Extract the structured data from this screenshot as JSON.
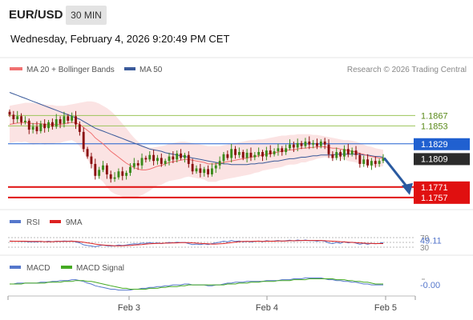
{
  "header": {
    "symbol": "EUR/USD",
    "timeframe": "30 MIN",
    "datetime": "Wednesday, February 4, 2026 9:20:49 PM CET"
  },
  "legend": {
    "ma20_bb": "MA 20 + Bollinger Bands",
    "ma50": "MA 50",
    "credit": "Research © 2026 Trading Central"
  },
  "colors": {
    "bullish": "#3a8a1a",
    "bearish": "#8b0f0f",
    "ma20": "#f07070",
    "ma50": "#3a5a9a",
    "resistance": "#9cc45a",
    "pivot": "#2060d0",
    "support": "#e01010",
    "current": "#333333",
    "arrow": "#2a5aa0",
    "rsi": "#5577cc",
    "rsi_ma": "#dd2222",
    "macd": "#5577cc",
    "macd_signal": "#44aa22"
  },
  "chart_data": {
    "type": "candlestick",
    "x_ticks": [
      "Feb 3",
      "Feb 4",
      "Feb 5"
    ],
    "ylim": [
      1.1745,
      1.192
    ],
    "current_price": 1.1809,
    "levels": [
      {
        "label": "1.1867",
        "value": 1.1867,
        "kind": "resistance"
      },
      {
        "label": "1.1853",
        "value": 1.1853,
        "kind": "resistance"
      },
      {
        "label": "1.1829",
        "value": 1.1829,
        "kind": "pivot"
      },
      {
        "label": "1.1809",
        "value": 1.1809,
        "kind": "current"
      },
      {
        "label": "1.1771",
        "value": 1.1771,
        "kind": "support"
      },
      {
        "label": "1.1757",
        "value": 1.1757,
        "kind": "support"
      }
    ],
    "closes": [
      1.1868,
      1.1862,
      1.1866,
      1.1858,
      1.186,
      1.1848,
      1.1852,
      1.1846,
      1.1856,
      1.185,
      1.1858,
      1.1852,
      1.1862,
      1.1856,
      1.1866,
      1.186,
      1.1866,
      1.1855,
      1.1845,
      1.1822,
      1.1812,
      1.1802,
      1.1786,
      1.1794,
      1.18,
      1.1788,
      1.1782,
      1.1784,
      1.1792,
      1.1786,
      1.179,
      1.1798,
      1.1803,
      1.18,
      1.181,
      1.1808,
      1.1814,
      1.1806,
      1.181,
      1.1802,
      1.1806,
      1.1812,
      1.1808,
      1.1816,
      1.181,
      1.1814,
      1.1802,
      1.1792,
      1.1796,
      1.179,
      1.1795,
      1.1788,
      1.1796,
      1.18,
      1.1806,
      1.1815,
      1.181,
      1.1822,
      1.1814,
      1.1818,
      1.181,
      1.1817,
      1.1811,
      1.1814,
      1.1818,
      1.1812,
      1.182,
      1.1815,
      1.1819,
      1.1823,
      1.1818,
      1.1823,
      1.1828,
      1.1824,
      1.183,
      1.1826,
      1.1832,
      1.1828,
      1.183,
      1.1826,
      1.1832,
      1.1828,
      1.1815,
      1.181,
      1.1818,
      1.1812,
      1.1822,
      1.1815,
      1.182,
      1.1814,
      1.1802,
      1.1808,
      1.18,
      1.1806,
      1.1802,
      1.1806,
      1.181
    ],
    "ma20": [
      1.1855,
      1.1856,
      1.1857,
      1.1857,
      1.1858,
      1.1857,
      1.1856,
      1.1856,
      1.1856,
      1.1855,
      1.1855,
      1.1855,
      1.1855,
      1.1855,
      1.1856,
      1.1857,
      1.1858,
      1.1857,
      1.1855,
      1.1851,
      1.1847,
      1.1843,
      1.1837,
      1.1833,
      1.1829,
      1.1824,
      1.1819,
      1.1815,
      1.1811,
      1.1807,
      1.1803,
      1.18,
      1.1797,
      1.1795,
      1.1794,
      1.1794,
      1.1795,
      1.1797,
      1.1799,
      1.18,
      1.1802,
      1.1804,
      1.1805,
      1.1806,
      1.1807,
      1.1808,
      1.1808,
      1.1807,
      1.1806,
      1.1805,
      1.1804,
      1.1802,
      1.1802,
      1.1802,
      1.1803,
      1.1804,
      1.1805,
      1.1806,
      1.1807,
      1.1808,
      1.1809,
      1.181,
      1.1811,
      1.1812,
      1.1813,
      1.1814,
      1.1815,
      1.1816,
      1.1817,
      1.1818,
      1.1819,
      1.182,
      1.1821,
      1.1821,
      1.1822,
      1.1823,
      1.1823,
      1.1824,
      1.1824,
      1.1825,
      1.1825,
      1.1825,
      1.1824,
      1.1823,
      1.1823,
      1.1822,
      1.1821,
      1.182,
      1.1819,
      1.1818,
      1.1816,
      1.1815,
      1.1813,
      1.1812,
      1.1811,
      1.181,
      1.181
    ],
    "bb_upper": [
      1.188,
      1.1881,
      1.1882,
      1.1883,
      1.1884,
      1.1884,
      1.1884,
      1.1883,
      1.1882,
      1.1882,
      1.1881,
      1.1881,
      1.188,
      1.188,
      1.188,
      1.1881,
      1.1882,
      1.1883,
      1.1884,
      1.1885,
      1.1886,
      1.1886,
      1.1885,
      1.1883,
      1.188,
      1.1877,
      1.1873,
      1.1868,
      1.1862,
      1.1856,
      1.185,
      1.1843,
      1.1837,
      1.1832,
      1.1828,
      1.1825,
      1.1824,
      1.1824,
      1.1825,
      1.1826,
      1.1827,
      1.1829,
      1.183,
      1.1831,
      1.1832,
      1.1832,
      1.1831,
      1.183,
      1.1829,
      1.1828,
      1.1827,
      1.1826,
      1.1826,
      1.1826,
      1.1826,
      1.1827,
      1.1828,
      1.1829,
      1.183,
      1.1831,
      1.1832,
      1.1833,
      1.1834,
      1.1834,
      1.1835,
      1.1835,
      1.1836,
      1.1837,
      1.1838,
      1.1839,
      1.184,
      1.184,
      1.1841,
      1.1841,
      1.1842,
      1.1842,
      1.1842,
      1.1842,
      1.1841,
      1.1841,
      1.184,
      1.1839,
      1.1838,
      1.1837,
      1.1836,
      1.1835,
      1.1834,
      1.1834,
      1.1833,
      1.1832,
      1.183,
      1.1828,
      1.1826,
      1.1825,
      1.1823,
      1.1822,
      1.1821
    ],
    "bb_lower": [
      1.183,
      1.1831,
      1.1832,
      1.1831,
      1.1832,
      1.183,
      1.1828,
      1.1829,
      1.183,
      1.1828,
      1.1829,
      1.1829,
      1.183,
      1.183,
      1.1832,
      1.1833,
      1.1834,
      1.1831,
      1.1826,
      1.1817,
      1.1808,
      1.18,
      1.1789,
      1.1783,
      1.1778,
      1.1771,
      1.1765,
      1.1762,
      1.176,
      1.1758,
      1.1756,
      1.1757,
      1.1757,
      1.1758,
      1.176,
      1.1763,
      1.1766,
      1.177,
      1.1773,
      1.1774,
      1.1777,
      1.1779,
      1.178,
      1.1781,
      1.1782,
      1.1784,
      1.1785,
      1.1784,
      1.1783,
      1.1782,
      1.1781,
      1.1778,
      1.1778,
      1.1778,
      1.178,
      1.1781,
      1.1782,
      1.1783,
      1.1784,
      1.1785,
      1.1786,
      1.1787,
      1.1788,
      1.179,
      1.1791,
      1.1793,
      1.1794,
      1.1795,
      1.1796,
      1.1797,
      1.1798,
      1.18,
      1.1801,
      1.1801,
      1.1802,
      1.1804,
      1.1804,
      1.1806,
      1.1807,
      1.1809,
      1.181,
      1.1811,
      1.181,
      1.1809,
      1.181,
      1.1809,
      1.1808,
      1.1806,
      1.1805,
      1.1804,
      1.1802,
      1.1802,
      1.18,
      1.1799,
      1.1799,
      1.1798,
      1.1799
    ],
    "ma50": [
      1.1898,
      1.1896,
      1.1894,
      1.1892,
      1.189,
      1.1888,
      1.1886,
      1.1884,
      1.1882,
      1.188,
      1.1878,
      1.1876,
      1.1874,
      1.1872,
      1.187,
      1.1868,
      1.1866,
      1.1864,
      1.1862,
      1.1859,
      1.1856,
      1.1853,
      1.185,
      1.1848,
      1.1846,
      1.1844,
      1.1842,
      1.184,
      1.1838,
      1.1836,
      1.1834,
      1.1832,
      1.183,
      1.1828,
      1.1826,
      1.1824,
      1.1822,
      1.1821,
      1.182,
      1.1819,
      1.1817,
      1.1816,
      1.1815,
      1.1814,
      1.1813,
      1.1812,
      1.1811,
      1.181,
      1.1809,
      1.1808,
      1.1807,
      1.1806,
      1.1805,
      1.1804,
      1.1803,
      1.1802,
      1.1802,
      1.1801,
      1.1801,
      1.1801,
      1.1801,
      1.1801,
      1.1802,
      1.1802,
      1.1803,
      1.1803,
      1.1804,
      1.1805,
      1.1806,
      1.1806,
      1.1807,
      1.1808,
      1.1809,
      1.1809,
      1.181,
      1.1811,
      1.1811,
      1.1812,
      1.1813,
      1.1813,
      1.1814,
      1.1814,
      1.1814,
      1.1814,
      1.1815,
      1.1815,
      1.1815,
      1.1815,
      1.1815,
      1.1815,
      1.1815,
      1.1814,
      1.1814,
      1.1813,
      1.1812,
      1.1812,
      1.1811
    ],
    "forecast": [
      [
        1.1809,
        1.177
      ]
    ],
    "rsi": {
      "label": "RSI",
      "ma_label": "9MA",
      "value_label": "49.11",
      "value": 49.11,
      "levels": [
        70,
        50,
        30
      ],
      "level_labels": [
        "70",
        "30"
      ],
      "rsi": [
        56,
        55,
        55,
        54,
        54,
        52,
        53,
        52,
        54,
        53,
        55,
        53,
        55,
        54,
        56,
        55,
        56,
        52,
        48,
        40,
        37,
        35,
        32,
        36,
        39,
        36,
        35,
        36,
        39,
        37,
        39,
        42,
        44,
        43,
        47,
        46,
        49,
        46,
        48,
        45,
        47,
        50,
        48,
        51,
        49,
        50,
        45,
        41,
        43,
        41,
        44,
        41,
        45,
        48,
        51,
        55,
        52,
        58,
        54,
        56,
        52,
        55,
        52,
        54,
        56,
        53,
        57,
        55,
        56,
        58,
        55,
        57,
        59,
        56,
        60,
        57,
        60,
        57,
        58,
        55,
        58,
        55,
        48,
        45,
        50,
        46,
        53,
        48,
        51,
        47,
        42,
        46,
        42,
        46,
        44,
        46,
        49
      ],
      "ma": [
        55,
        55,
        55,
        55,
        55,
        54,
        54,
        54,
        54,
        53,
        53,
        53,
        54,
        54,
        54,
        54,
        55,
        54,
        53,
        51,
        48,
        46,
        43,
        41,
        39,
        38,
        37,
        36,
        36,
        36,
        37,
        37,
        39,
        40,
        41,
        43,
        44,
        45,
        46,
        46,
        47,
        47,
        48,
        48,
        49,
        49,
        49,
        48,
        47,
        46,
        45,
        44,
        43,
        43,
        44,
        45,
        47,
        49,
        51,
        53,
        54,
        54,
        54,
        55,
        55,
        54,
        55,
        55,
        55,
        56,
        56,
        56,
        57,
        57,
        57,
        58,
        58,
        58,
        58,
        58,
        58,
        57,
        56,
        55,
        54,
        53,
        52,
        51,
        50,
        49,
        48,
        47,
        46,
        46,
        45,
        45,
        45
      ]
    },
    "macd": {
      "label": "MACD",
      "signal_label": "MACD Signal",
      "value_label": "-0.00",
      "macd": [
        0.0,
        0.0,
        0.1,
        0.1,
        0.1,
        0.1,
        0.1,
        0.1,
        0.2,
        0.2,
        0.2,
        0.3,
        0.3,
        0.4,
        0.4,
        0.4,
        0.5,
        0.5,
        0.4,
        0.3,
        0.1,
        0.0,
        -0.2,
        -0.3,
        -0.4,
        -0.5,
        -0.6,
        -0.6,
        -0.7,
        -0.7,
        -0.7,
        -0.7,
        -0.6,
        -0.6,
        -0.5,
        -0.5,
        -0.4,
        -0.4,
        -0.3,
        -0.3,
        -0.2,
        -0.2,
        -0.1,
        -0.1,
        -0.1,
        0.0,
        0.0,
        -0.1,
        -0.1,
        -0.1,
        -0.1,
        -0.2,
        -0.2,
        -0.1,
        -0.1,
        0.0,
        0.1,
        0.1,
        0.2,
        0.2,
        0.2,
        0.3,
        0.3,
        0.3,
        0.3,
        0.3,
        0.4,
        0.4,
        0.4,
        0.4,
        0.5,
        0.5,
        0.5,
        0.6,
        0.6,
        0.6,
        0.7,
        0.7,
        0.7,
        0.7,
        0.7,
        0.6,
        0.5,
        0.5,
        0.4,
        0.4,
        0.3,
        0.3,
        0.2,
        0.2,
        0.1,
        0.0,
        0.0,
        -0.1,
        -0.1,
        -0.1,
        -0.1
      ],
      "signal": [
        0.0,
        0.0,
        0.0,
        0.0,
        0.1,
        0.1,
        0.1,
        0.1,
        0.1,
        0.1,
        0.2,
        0.2,
        0.2,
        0.2,
        0.3,
        0.3,
        0.3,
        0.4,
        0.4,
        0.4,
        0.3,
        0.3,
        0.2,
        0.1,
        0.0,
        -0.1,
        -0.2,
        -0.3,
        -0.4,
        -0.5,
        -0.5,
        -0.6,
        -0.6,
        -0.6,
        -0.6,
        -0.6,
        -0.5,
        -0.5,
        -0.5,
        -0.4,
        -0.4,
        -0.3,
        -0.3,
        -0.3,
        -0.2,
        -0.2,
        -0.1,
        -0.1,
        -0.1,
        -0.1,
        -0.1,
        -0.1,
        -0.1,
        -0.1,
        -0.1,
        -0.1,
        0.0,
        0.0,
        0.0,
        0.1,
        0.1,
        0.1,
        0.2,
        0.2,
        0.2,
        0.3,
        0.3,
        0.3,
        0.3,
        0.4,
        0.4,
        0.4,
        0.4,
        0.5,
        0.5,
        0.5,
        0.5,
        0.6,
        0.6,
        0.6,
        0.6,
        0.6,
        0.6,
        0.6,
        0.5,
        0.5,
        0.5,
        0.4,
        0.4,
        0.3,
        0.3,
        0.2,
        0.2,
        0.1,
        0.0,
        0.0,
        0.0
      ]
    }
  }
}
